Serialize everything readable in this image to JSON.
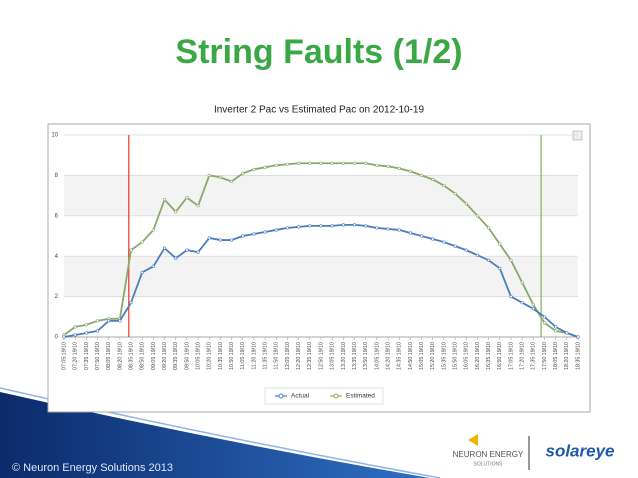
{
  "slide": {
    "title": "String Faults (1/2)",
    "footer": "© Neuron Energy Solutions 2013",
    "logo_left": "NEURON ENERGY",
    "logo_left_sub": "SOLUTIONS",
    "logo_right": "solareye"
  },
  "chart_data": {
    "type": "line",
    "title": "Inverter 2 Pac vs Estimated Pac on 2012-10-19",
    "categories": [
      "07:05 19/10",
      "07:20 19/10",
      "07:35 19/10",
      "07:50 19/10",
      "08:05 19/10",
      "08:20 19/10",
      "08:35 19/10",
      "08:50 19/10",
      "09:05 19/10",
      "09:20 19/10",
      "09:35 19/10",
      "09:50 19/10",
      "10:05 19/10",
      "10:20 19/10",
      "10:35 19/10",
      "10:50 19/10",
      "11:05 19/10",
      "11:20 19/10",
      "11:35 19/10",
      "11:50 19/10",
      "12:05 19/10",
      "12:20 19/10",
      "12:35 19/10",
      "12:50 19/10",
      "13:05 19/10",
      "13:20 19/10",
      "13:35 19/10",
      "13:50 19/10",
      "14:05 19/10",
      "14:20 19/10",
      "14:35 19/10",
      "14:50 19/10",
      "15:05 19/10",
      "15:20 19/10",
      "15:35 19/10",
      "15:50 19/10",
      "16:05 19/10",
      "16:20 19/10",
      "16:35 19/10",
      "16:50 19/10",
      "17:05 19/10",
      "17:20 19/10",
      "17:35 19/10",
      "17:50 19/10",
      "18:05 19/10",
      "18:20 19/10",
      "18:35 19/10"
    ],
    "series": [
      {
        "name": "Actual",
        "color": "#4a7ebb",
        "values": [
          0.0,
          0.1,
          0.2,
          0.3,
          0.8,
          0.8,
          1.7,
          3.2,
          3.5,
          4.4,
          3.9,
          4.3,
          4.2,
          4.9,
          4.8,
          4.8,
          5.0,
          5.1,
          5.2,
          5.3,
          5.4,
          5.45,
          5.5,
          5.5,
          5.5,
          5.55,
          5.55,
          5.5,
          5.4,
          5.35,
          5.3,
          5.15,
          5.0,
          4.85,
          4.7,
          4.5,
          4.3,
          4.05,
          3.8,
          3.4,
          2.0,
          1.7,
          1.4,
          1.0,
          0.5,
          0.2,
          0.0
        ]
      },
      {
        "name": "Estimated",
        "color": "#8aa86a",
        "values": [
          0.1,
          0.5,
          0.6,
          0.8,
          0.9,
          0.9,
          4.3,
          4.7,
          5.3,
          6.8,
          6.2,
          6.9,
          6.5,
          8.0,
          7.9,
          7.7,
          8.1,
          8.3,
          8.4,
          8.5,
          8.55,
          8.6,
          8.6,
          8.6,
          8.6,
          8.6,
          8.6,
          8.6,
          8.5,
          8.45,
          8.35,
          8.2,
          8.0,
          7.8,
          7.5,
          7.1,
          6.6,
          6.0,
          5.4,
          4.6,
          3.8,
          2.7,
          1.6,
          0.7,
          0.3,
          0.2,
          0.0
        ]
      }
    ],
    "vlines": [
      {
        "x": 5.8,
        "color": "#e8332a"
      },
      {
        "x": 42.7,
        "color": "#7fb35a"
      }
    ],
    "ylim": [
      0,
      10
    ],
    "yticks": [
      0,
      2,
      4,
      6,
      8,
      10
    ],
    "grid": true
  }
}
